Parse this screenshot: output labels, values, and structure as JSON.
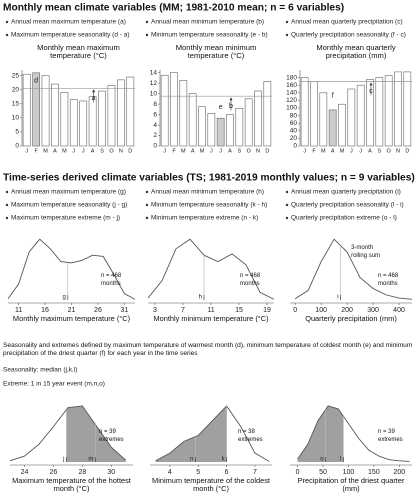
{
  "sections": [
    {
      "title": "Monthly mean climate variables (MM; 1981-2010 mean; n = 6 variables)",
      "bullets": [
        [
          "Annual mean maximum temperature (a)",
          "Maximum temperature seasonality (d - a)"
        ],
        [
          "Annual mean minimum temperature (b)",
          "Minimum temperature seasonality (e - b)"
        ],
        [
          "Annual mean quarterly precipitation (c)",
          "Quarterly precipitation seasonality (f - c)"
        ]
      ]
    },
    {
      "title": "Time-series derived climate variables (TS; 1981-2019 monthly values; n = 9 variables)",
      "bullets": [
        [
          "Annual mean maximum temperature (g)",
          "Maximum temperature seasonality (j - g)",
          "Maximum temperature extreme (m - j)"
        ],
        [
          "Annual mean minimum temperature (h)",
          "Minimum temperature seasonality (k - h)",
          "Minimum temperature extreme (n - k)"
        ],
        [
          "Annual mean quarterly precipitation (i)",
          "Quarterly precipitation seasonality (l - i)",
          "Quarterly precipitation extreme (o - l)"
        ]
      ]
    }
  ],
  "notes": [
    "Seasonality and extremes defined by maximum temperature of warmest month (d), minimum temperature of coldest month (e) and minimum precipitation of the driest quarter (f) for each year in the time series",
    "Seasonality: median (j,k,l)",
    "Extreme: 1 in 15 year event (m,n,o)"
  ],
  "chart_data": [
    {
      "type": "bar",
      "title": "Monthly mean maximum temperature (°C)",
      "categories": [
        "J",
        "F",
        "M",
        "A",
        "M",
        "J",
        "J",
        "A",
        "S",
        "O",
        "N",
        "D"
      ],
      "values": [
        25.5,
        26,
        25,
        22,
        19,
        16.5,
        16,
        17.5,
        19.5,
        21.5,
        23.5,
        24.5
      ],
      "ylim": [
        0,
        27
      ],
      "yticks": [
        0,
        5,
        10,
        15,
        20,
        25
      ],
      "highlight": 1,
      "highlight_color": "#cccccc",
      "color": "#ffffff",
      "mean": 20.5,
      "mean_label": "a",
      "seasonality_label": "d"
    },
    {
      "type": "bar",
      "title": "Monthly mean minimum temperature (°C)",
      "categories": [
        "J",
        "F",
        "M",
        "A",
        "M",
        "J",
        "J",
        "A",
        "S",
        "O",
        "N",
        "D"
      ],
      "values": [
        13.5,
        14,
        12.5,
        10,
        7.5,
        6.2,
        5.3,
        6,
        7.2,
        9,
        10.5,
        12.3
      ],
      "ylim": [
        0,
        14.5
      ],
      "yticks": [
        0,
        2,
        4,
        6,
        8,
        10,
        12,
        14
      ],
      "highlight": 6,
      "highlight_color": "#cccccc",
      "color": "#ffffff",
      "mean": 9.5,
      "mean_label": "b",
      "seasonality_label": "e"
    },
    {
      "type": "bar",
      "title": "Monthly mean quarterly precipitation (mm)",
      "categories": [
        "J",
        "F",
        "M",
        "A",
        "M",
        "J",
        "J",
        "A",
        "S",
        "O",
        "N",
        "D"
      ],
      "values": [
        180,
        170,
        140,
        95,
        110,
        150,
        160,
        175,
        180,
        185,
        195,
        195
      ],
      "ylim": [
        0,
        200
      ],
      "yticks": [
        0,
        20,
        40,
        60,
        80,
        100,
        120,
        140,
        160,
        180
      ],
      "highlight": 3,
      "highlight_color": "#cccccc",
      "color": "#ffffff",
      "mean": 170,
      "mean_label": "c",
      "seasonality_label": "f"
    },
    {
      "type": "density",
      "xlabel": "Monthly maximum temperature (°C)",
      "x": [
        9,
        11,
        13,
        15,
        17,
        19,
        21,
        23,
        25,
        27,
        29,
        31,
        33
      ],
      "y": [
        0.02,
        0.25,
        0.75,
        0.95,
        0.8,
        0.6,
        0.58,
        0.62,
        0.7,
        0.68,
        0.4,
        0.1,
        0.01
      ],
      "xlim": [
        9,
        33
      ],
      "xticks": [
        11,
        16,
        21,
        26,
        31
      ],
      "ylim": [
        0,
        1
      ],
      "markers": [
        {
          "label": "g",
          "x": 20.3
        }
      ],
      "annotation": "n = 468 months"
    },
    {
      "type": "density",
      "xlabel": "Monthly minimum temperature (°C)",
      "x": [
        2,
        4,
        6,
        8,
        10,
        12,
        14,
        16,
        18,
        20
      ],
      "y": [
        0.03,
        0.3,
        0.8,
        0.95,
        0.7,
        0.6,
        0.72,
        0.55,
        0.12,
        0.01
      ],
      "xlim": [
        2,
        20
      ],
      "xticks": [
        3,
        7,
        11,
        15,
        19
      ],
      "ylim": [
        0,
        1
      ],
      "markers": [
        {
          "label": "h",
          "x": 10
        }
      ],
      "annotation": "n = 468 months"
    },
    {
      "type": "density",
      "xlabel": "Quarterly precipitation (mm)",
      "x": [
        0,
        50,
        100,
        150,
        200,
        250,
        300,
        350,
        400,
        450
      ],
      "y": [
        0.02,
        0.15,
        0.6,
        0.95,
        0.75,
        0.35,
        0.18,
        0.08,
        0.03,
        0.01
      ],
      "xlim": [
        -20,
        450
      ],
      "xticks": [
        0,
        100,
        200,
        300,
        400
      ],
      "ylim": [
        0,
        1
      ],
      "markers": [
        {
          "label": "i",
          "x": 175
        }
      ],
      "annotation": "n = 468 months",
      "note": "3-month rolling sum"
    },
    {
      "type": "density",
      "xlabel": "Maximum temperature of the hottest month (°C)",
      "x": [
        23,
        24,
        25,
        26,
        27,
        28,
        29,
        30,
        31
      ],
      "y": [
        0.02,
        0.1,
        0.3,
        0.6,
        0.92,
        0.95,
        0.6,
        0.25,
        0.03
      ],
      "xlim": [
        23,
        31.5
      ],
      "xticks": [
        24,
        26,
        28,
        30
      ],
      "ylim": [
        0,
        1
      ],
      "shade": [
        26.9,
        31
      ],
      "shade_color": "#a0a0a0",
      "markers": [
        {
          "label": "j",
          "x": 26.9
        },
        {
          "label": "m",
          "x": 28.9
        }
      ],
      "annotation": "n = 39 extremes"
    },
    {
      "type": "density",
      "xlabel": "Minimum temperature of the coldest month (°C)",
      "x": [
        3.5,
        4,
        4.5,
        5,
        5.5,
        6,
        6.5,
        7,
        7.5
      ],
      "y": [
        0.02,
        0.15,
        0.35,
        0.45,
        0.7,
        0.95,
        0.6,
        0.15,
        0.01
      ],
      "xlim": [
        3.3,
        7.6
      ],
      "xticks": [
        4,
        5,
        6,
        7
      ],
      "ylim": [
        0,
        1
      ],
      "shade": [
        3.5,
        6
      ],
      "shade_color": "#a0a0a0",
      "markers": [
        {
          "label": "n",
          "x": 4.9
        },
        {
          "label": "k",
          "x": 6
        }
      ],
      "annotation": "n = 38 extremes"
    },
    {
      "type": "density",
      "xlabel": "Precipitation of the driest quarter (mm)",
      "x": [
        0,
        20,
        40,
        60,
        80,
        100,
        120,
        140,
        160,
        180,
        200,
        220
      ],
      "y": [
        0.05,
        0.3,
        0.7,
        0.95,
        0.9,
        0.65,
        0.4,
        0.2,
        0.1,
        0.04,
        0.02,
        0.01
      ],
      "xlim": [
        -15,
        225
      ],
      "xticks": [
        0,
        50,
        100,
        150,
        200
      ],
      "ylim": [
        0,
        1
      ],
      "shade": [
        0,
        90
      ],
      "shade_color": "#a0a0a0",
      "markers": [
        {
          "label": "o",
          "x": 55
        },
        {
          "label": "l",
          "x": 90
        }
      ],
      "annotation": "n = 39 extremes"
    }
  ]
}
